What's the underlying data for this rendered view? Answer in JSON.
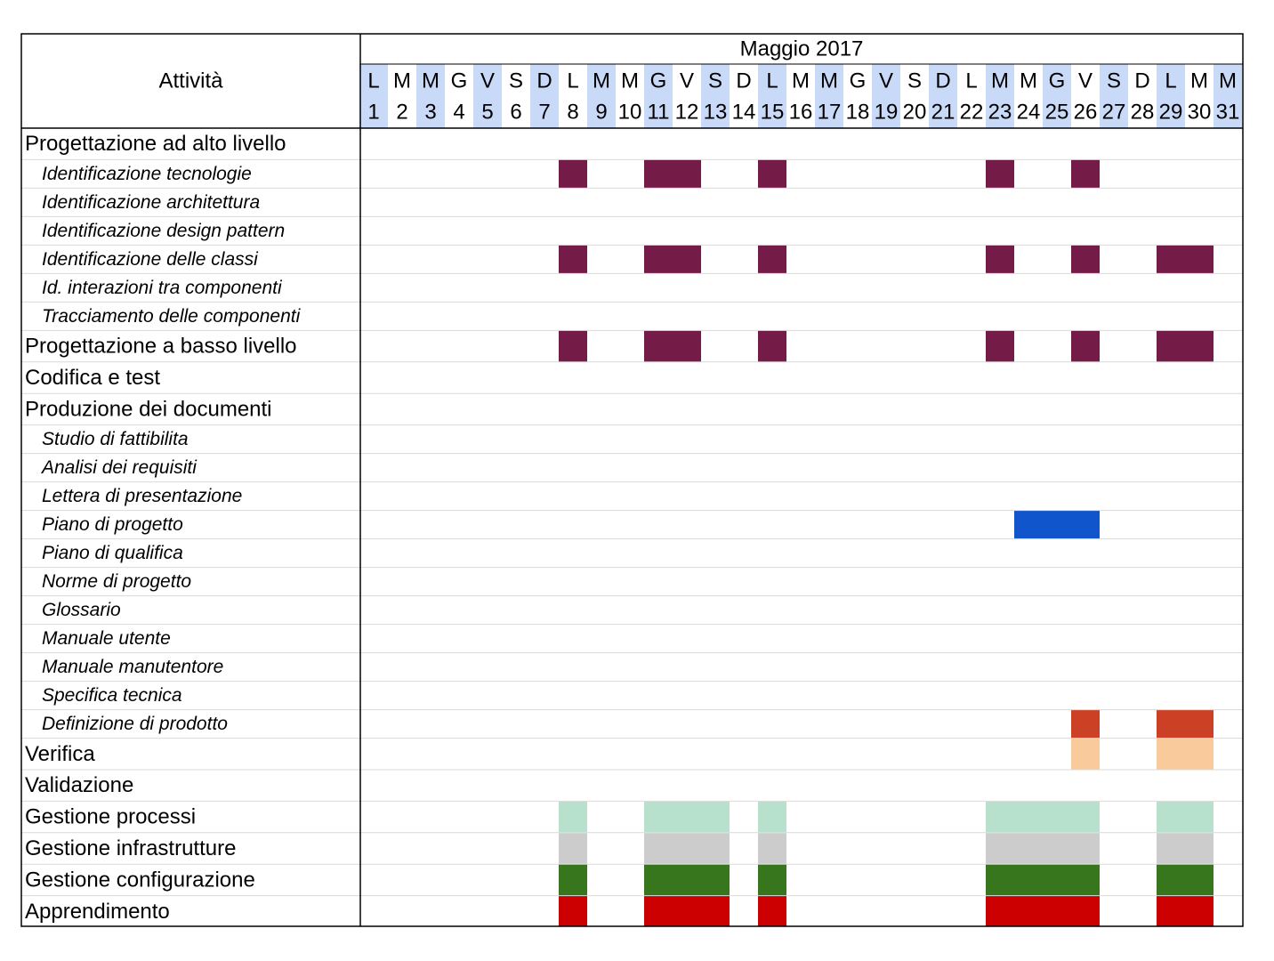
{
  "chart_data": {
    "type": "gantt",
    "header": {
      "activity_col": "Attività",
      "period": "Maggio 2017"
    },
    "days": [
      {
        "d": "L",
        "n": "1",
        "shade": true
      },
      {
        "d": "M",
        "n": "2",
        "shade": false
      },
      {
        "d": "M",
        "n": "3",
        "shade": true
      },
      {
        "d": "G",
        "n": "4",
        "shade": false
      },
      {
        "d": "V",
        "n": "5",
        "shade": true
      },
      {
        "d": "S",
        "n": "6",
        "shade": false
      },
      {
        "d": "D",
        "n": "7",
        "shade": true
      },
      {
        "d": "L",
        "n": "8",
        "shade": false
      },
      {
        "d": "M",
        "n": "9",
        "shade": true
      },
      {
        "d": "M",
        "n": "10",
        "shade": false
      },
      {
        "d": "G",
        "n": "11",
        "shade": true
      },
      {
        "d": "V",
        "n": "12",
        "shade": false
      },
      {
        "d": "S",
        "n": "13",
        "shade": true
      },
      {
        "d": "D",
        "n": "14",
        "shade": false
      },
      {
        "d": "L",
        "n": "15",
        "shade": true
      },
      {
        "d": "M",
        "n": "16",
        "shade": false
      },
      {
        "d": "M",
        "n": "17",
        "shade": true
      },
      {
        "d": "G",
        "n": "18",
        "shade": false
      },
      {
        "d": "V",
        "n": "19",
        "shade": true
      },
      {
        "d": "S",
        "n": "20",
        "shade": false
      },
      {
        "d": "D",
        "n": "21",
        "shade": true
      },
      {
        "d": "L",
        "n": "22",
        "shade": false
      },
      {
        "d": "M",
        "n": "23",
        "shade": true
      },
      {
        "d": "M",
        "n": "24",
        "shade": false
      },
      {
        "d": "G",
        "n": "25",
        "shade": true
      },
      {
        "d": "V",
        "n": "26",
        "shade": false
      },
      {
        "d": "S",
        "n": "27",
        "shade": true
      },
      {
        "d": "D",
        "n": "28",
        "shade": false
      },
      {
        "d": "L",
        "n": "29",
        "shade": true
      },
      {
        "d": "M",
        "n": "30",
        "shade": false
      },
      {
        "d": "M",
        "n": "31",
        "shade": true
      }
    ],
    "colors": {
      "day_shade": "#c9daf8",
      "plum": "#741b47",
      "blue": "#1155cc",
      "red_orange": "#cc4125",
      "peach": "#f9cb9c",
      "mint": "#b7e1cd",
      "gray": "#cccccc",
      "green": "#38761d",
      "red": "#cc0000",
      "grid": "#d9d9d9",
      "border": "#000000"
    },
    "activities": [
      {
        "name": "Progettazione ad alto livello",
        "level": "major",
        "color": "",
        "days": []
      },
      {
        "name": "Identificazione tecnologie",
        "level": "minor",
        "color": "plum",
        "days": [
          8,
          11,
          12,
          15,
          23,
          26
        ]
      },
      {
        "name": "Identificazione architettura",
        "level": "minor",
        "color": "",
        "days": []
      },
      {
        "name": "Identificazione design pattern",
        "level": "minor",
        "color": "",
        "days": []
      },
      {
        "name": "Identificazione delle classi",
        "level": "minor",
        "color": "plum",
        "days": [
          8,
          11,
          12,
          15,
          23,
          26,
          29,
          30
        ]
      },
      {
        "name": "Id. interazioni tra componenti",
        "level": "minor",
        "color": "",
        "days": []
      },
      {
        "name": "Tracciamento delle componenti",
        "level": "minor",
        "color": "",
        "days": []
      },
      {
        "name": "Progettazione a basso livello",
        "level": "major",
        "color": "plum",
        "days": [
          8,
          11,
          12,
          15,
          23,
          26,
          29,
          30
        ]
      },
      {
        "name": "Codifica e test",
        "level": "major",
        "color": "",
        "days": []
      },
      {
        "name": "Produzione dei documenti",
        "level": "major",
        "color": "",
        "days": []
      },
      {
        "name": "Studio di fattibilita",
        "level": "minor",
        "color": "",
        "days": []
      },
      {
        "name": "Analisi dei requisiti",
        "level": "minor",
        "color": "",
        "days": []
      },
      {
        "name": "Lettera di presentazione",
        "level": "minor",
        "color": "",
        "days": []
      },
      {
        "name": "Piano di progetto",
        "level": "minor",
        "color": "blue",
        "days": [
          24,
          25,
          26
        ]
      },
      {
        "name": "Piano di qualifica",
        "level": "minor",
        "color": "",
        "days": []
      },
      {
        "name": "Norme di progetto",
        "level": "minor",
        "color": "",
        "days": []
      },
      {
        "name": "Glossario",
        "level": "minor",
        "color": "",
        "days": []
      },
      {
        "name": "Manuale utente",
        "level": "minor",
        "color": "",
        "days": []
      },
      {
        "name": "Manuale manutentore",
        "level": "minor",
        "color": "",
        "days": []
      },
      {
        "name": "Specifica tecnica",
        "level": "minor",
        "color": "",
        "days": []
      },
      {
        "name": "Definizione di prodotto",
        "level": "minor",
        "color": "red_orange",
        "days": [
          26,
          29,
          30
        ]
      },
      {
        "name": "Verifica",
        "level": "major",
        "color": "peach",
        "days": [
          26,
          29,
          30
        ]
      },
      {
        "name": "Validazione",
        "level": "major",
        "color": "",
        "days": []
      },
      {
        "name": "Gestione processi",
        "level": "major",
        "color": "mint",
        "days": [
          8,
          11,
          12,
          13,
          15,
          23,
          24,
          25,
          26,
          29,
          30
        ]
      },
      {
        "name": "Gestione infrastrutture",
        "level": "major",
        "color": "gray",
        "days": [
          8,
          11,
          12,
          13,
          15,
          23,
          24,
          25,
          26,
          29,
          30
        ]
      },
      {
        "name": "Gestione configurazione",
        "level": "major",
        "color": "green",
        "days": [
          8,
          11,
          12,
          13,
          15,
          23,
          24,
          25,
          26,
          29,
          30
        ]
      },
      {
        "name": "Apprendimento",
        "level": "major",
        "color": "red",
        "days": [
          8,
          11,
          12,
          13,
          15,
          23,
          24,
          25,
          26,
          29,
          30
        ]
      }
    ]
  }
}
